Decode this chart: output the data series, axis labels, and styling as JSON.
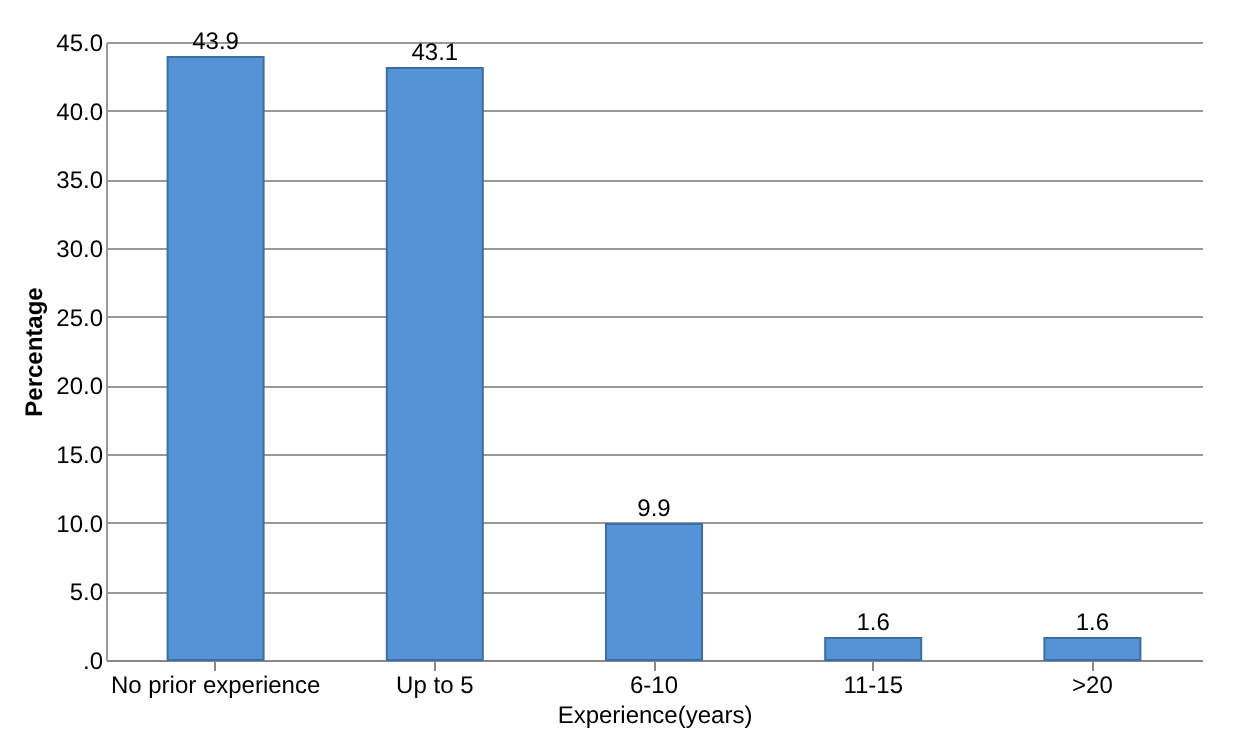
{
  "chart_data": {
    "type": "bar",
    "categories": [
      "No prior experience",
      "Up to 5",
      "6-10",
      "11-15",
      ">20"
    ],
    "values": [
      43.9,
      43.1,
      9.9,
      1.6,
      1.6
    ],
    "color": "#5592d6",
    "xlabel": "Experience(years)",
    "ylabel": "Percentage",
    "ylim": [
      0,
      45
    ],
    "yticks": [
      {
        "value": 0,
        "label": ".0"
      },
      {
        "value": 5,
        "label": "5.0"
      },
      {
        "value": 10,
        "label": "10.0"
      },
      {
        "value": 15,
        "label": "15.0"
      },
      {
        "value": 20,
        "label": "20.0"
      },
      {
        "value": 25,
        "label": "25.0"
      },
      {
        "value": 30,
        "label": "30.0"
      },
      {
        "value": 35,
        "label": "35.0"
      },
      {
        "value": 40,
        "label": "40.0"
      },
      {
        "value": 45,
        "label": "45.0"
      }
    ],
    "grid": "y",
    "data_labels": true
  }
}
